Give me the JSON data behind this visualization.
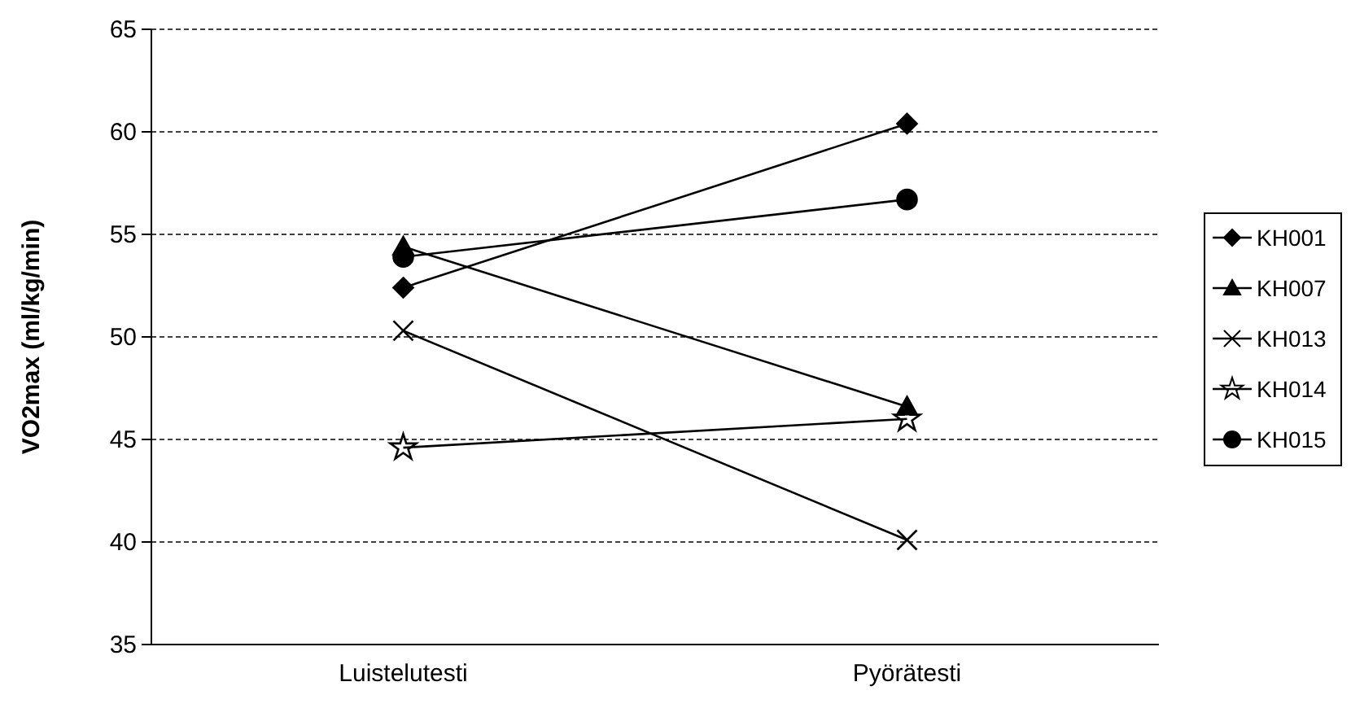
{
  "chart_data": {
    "type": "line",
    "ylabel": "VO2max (ml/kg/min)",
    "categories": [
      "Luistelutesti",
      "Pyörätesti"
    ],
    "ylim": [
      35,
      65
    ],
    "yticks": [
      35,
      40,
      45,
      50,
      55,
      60,
      65
    ],
    "grid": "y",
    "legend": "right",
    "line_style": "solid",
    "series": [
      {
        "name": "KH001",
        "color": "#000000",
        "marker": "diamond",
        "values": [
          52.4,
          60.4
        ]
      },
      {
        "name": "KH007",
        "color": "#000000",
        "marker": "triangle",
        "values": [
          54.4,
          46.6
        ]
      },
      {
        "name": "KH013",
        "color": "#000000",
        "marker": "cross",
        "values": [
          50.3,
          40.1
        ]
      },
      {
        "name": "KH014",
        "color": "#000000",
        "marker": "star",
        "values": [
          44.6,
          46.0
        ]
      },
      {
        "name": "KH015",
        "color": "#000000",
        "marker": "circle",
        "values": [
          53.9,
          56.7
        ]
      }
    ]
  }
}
